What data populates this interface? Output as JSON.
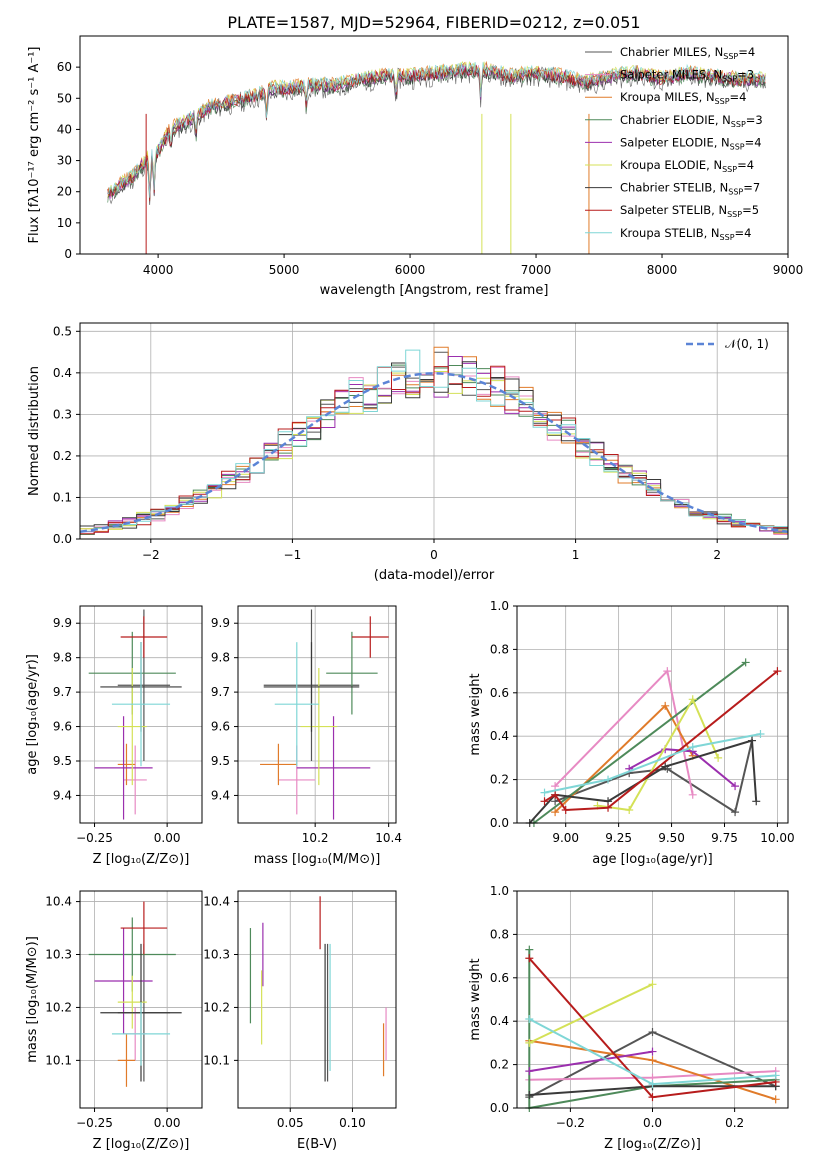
{
  "figure": {
    "title": "PLATE=1587, MJD=52964, FIBERID=0212, z=0.051"
  },
  "models": [
    {
      "name": "Chabrier MILES",
      "nssp": "4",
      "color": "#555555"
    },
    {
      "name": "Salpeter MILES",
      "nssp": "3",
      "color": "#e78ac3"
    },
    {
      "name": "Kroupa MILES",
      "nssp": "4",
      "color": "#e07b2a"
    },
    {
      "name": "Chabrier ELODIE",
      "nssp": "3",
      "color": "#4e8a5a"
    },
    {
      "name": "Salpeter ELODIE",
      "nssp": "4",
      "color": "#9b2fae"
    },
    {
      "name": "Kroupa ELODIE",
      "nssp": "4",
      "color": "#d4e157"
    },
    {
      "name": "Chabrier STELIB",
      "nssp": "7",
      "color": "#3a3a3a"
    },
    {
      "name": "Salpeter STELIB",
      "nssp": "5",
      "color": "#b71c1c"
    },
    {
      "name": "Kroupa STELIB",
      "nssp": "4",
      "color": "#7fd6d6"
    }
  ],
  "chart_data": [
    {
      "type": "line",
      "id": "spectrum",
      "xlabel": "wavelength [Angstrom, rest frame]",
      "ylabel": "Flux [fλ10⁻¹⁷ erg cm⁻² s⁻¹ A⁻¹]",
      "xlim": [
        3380,
        9000
      ],
      "ylim": [
        0,
        70
      ],
      "xticks": [
        4000,
        5000,
        6000,
        7000,
        8000,
        9000
      ],
      "yticks": [
        0,
        10,
        20,
        30,
        40,
        50,
        60
      ],
      "continuum": [
        [
          3600,
          19
        ],
        [
          3700,
          22
        ],
        [
          3800,
          25
        ],
        [
          3900,
          30
        ],
        [
          4000,
          33
        ],
        [
          4100,
          40
        ],
        [
          4200,
          42
        ],
        [
          4300,
          44
        ],
        [
          4400,
          47
        ],
        [
          4500,
          48
        ],
        [
          4600,
          49
        ],
        [
          4700,
          50
        ],
        [
          4800,
          51
        ],
        [
          4900,
          53
        ],
        [
          5000,
          53
        ],
        [
          5200,
          54
        ],
        [
          5400,
          54
        ],
        [
          5600,
          56
        ],
        [
          5800,
          57
        ],
        [
          6000,
          57
        ],
        [
          6200,
          58
        ],
        [
          6400,
          59
        ],
        [
          6600,
          59
        ],
        [
          6800,
          57
        ],
        [
          7000,
          58
        ],
        [
          7200,
          57
        ],
        [
          7400,
          55
        ],
        [
          7600,
          57
        ],
        [
          7800,
          58
        ],
        [
          8000,
          56
        ],
        [
          8200,
          58
        ],
        [
          8400,
          57
        ],
        [
          8600,
          56
        ],
        [
          8800,
          56
        ]
      ],
      "legend_position": "right"
    },
    {
      "type": "line",
      "id": "residuals",
      "xlabel": "(data-model)/error",
      "ylabel": "Normed distribution",
      "xlim": [
        -2.5,
        2.5
      ],
      "ylim": [
        0,
        0.52
      ],
      "xticks": [
        -2,
        -1,
        0,
        1,
        2
      ],
      "yticks": [
        0.0,
        0.1,
        0.2,
        0.3,
        0.4,
        0.5
      ],
      "legend": "𝒩(0, 1)",
      "grid": true
    },
    {
      "type": "scatter",
      "id": "z-age",
      "xlabel": "Z [log₁₀(Z/Z⊙)]",
      "ylabel": "age  [log₁₀(age/yr)]",
      "xlim": [
        -0.3,
        0.12
      ],
      "ylim": [
        9.32,
        9.95
      ],
      "xticks": [
        -0.25,
        0.0
      ],
      "yticks": [
        9.4,
        9.5,
        9.6,
        9.7,
        9.8,
        9.9
      ],
      "points": [
        {
          "x": -0.08,
          "y": 9.72,
          "xerr": 0.09,
          "yerr": 0.22,
          "model": 0
        },
        {
          "x": -0.11,
          "y": 9.445,
          "xerr": 0.04,
          "yerr": 0.1,
          "model": 1
        },
        {
          "x": -0.14,
          "y": 9.49,
          "xerr": 0.03,
          "yerr": 0.06,
          "model": 2
        },
        {
          "x": -0.12,
          "y": 9.755,
          "xerr": 0.15,
          "yerr": 0.12,
          "model": 3
        },
        {
          "x": -0.15,
          "y": 9.48,
          "xerr": 0.1,
          "yerr": 0.15,
          "model": 4
        },
        {
          "x": -0.12,
          "y": 9.6,
          "xerr": 0.05,
          "yerr": 0.17,
          "model": 5
        },
        {
          "x": -0.09,
          "y": 9.715,
          "xerr": 0.14,
          "yerr": 0.13,
          "model": 6
        },
        {
          "x": -0.08,
          "y": 9.86,
          "xerr": 0.08,
          "yerr": 0.06,
          "model": 7
        },
        {
          "x": -0.09,
          "y": 9.665,
          "xerr": 0.1,
          "yerr": 0.18,
          "model": 8
        }
      ]
    },
    {
      "type": "scatter",
      "id": "mass-age",
      "xlabel": "mass [log₁₀(M/M⊙)]",
      "ylabel": "",
      "xlim": [
        9.99,
        10.42
      ],
      "ylim": [
        9.32,
        9.95
      ],
      "xticks": [
        10.2,
        10.4
      ],
      "yticks": [
        9.4,
        9.5,
        9.6,
        9.7,
        9.8,
        9.9
      ],
      "points": [
        {
          "x": 10.19,
          "y": 9.72,
          "xerr": 0.13,
          "yerr": 0.22,
          "model": 0
        },
        {
          "x": 10.15,
          "y": 9.445,
          "xerr": 0.05,
          "yerr": 0.1,
          "model": 1
        },
        {
          "x": 10.1,
          "y": 9.49,
          "xerr": 0.05,
          "yerr": 0.06,
          "model": 2
        },
        {
          "x": 10.3,
          "y": 9.755,
          "xerr": 0.07,
          "yerr": 0.12,
          "model": 3
        },
        {
          "x": 10.25,
          "y": 9.48,
          "xerr": 0.1,
          "yerr": 0.15,
          "model": 4
        },
        {
          "x": 10.21,
          "y": 9.6,
          "xerr": 0.05,
          "yerr": 0.17,
          "model": 5
        },
        {
          "x": 10.19,
          "y": 9.715,
          "xerr": 0.13,
          "yerr": 0.13,
          "model": 6
        },
        {
          "x": 10.35,
          "y": 9.86,
          "xerr": 0.05,
          "yerr": 0.06,
          "model": 7
        },
        {
          "x": 10.15,
          "y": 9.665,
          "xerr": 0.06,
          "yerr": 0.18,
          "model": 8
        }
      ]
    },
    {
      "type": "line",
      "id": "age-weight",
      "xlabel": "age  [log₁₀(age/yr)]",
      "ylabel": "mass weight",
      "xlim": [
        8.77,
        10.05
      ],
      "ylim": [
        0,
        1
      ],
      "xticks": [
        9.0,
        9.25,
        9.5,
        9.75,
        10.0
      ],
      "yticks": [
        0.0,
        0.2,
        0.4,
        0.6,
        0.8,
        1.0
      ],
      "series": [
        {
          "model": 0,
          "x": [
            8.95,
            9.3,
            9.48,
            9.8,
            9.88
          ],
          "y": [
            0.1,
            0.23,
            0.25,
            0.05,
            0.38
          ]
        },
        {
          "model": 1,
          "x": [
            8.95,
            9.48,
            9.6
          ],
          "y": [
            0.17,
            0.7,
            0.13
          ]
        },
        {
          "model": 2,
          "x": [
            8.95,
            9.47,
            9.6
          ],
          "y": [
            0.05,
            0.54,
            0.31
          ]
        },
        {
          "model": 3,
          "x": [
            8.85,
            9.85
          ],
          "y": [
            0.0,
            0.74
          ]
        },
        {
          "model": 4,
          "x": [
            9.3,
            9.47,
            9.6,
            9.8
          ],
          "y": [
            0.25,
            0.34,
            0.33,
            0.17
          ]
        },
        {
          "model": 5,
          "x": [
            9.15,
            9.3,
            9.6,
            9.72
          ],
          "y": [
            0.08,
            0.06,
            0.57,
            0.3
          ]
        },
        {
          "model": 6,
          "x": [
            8.83,
            8.95,
            9.2,
            9.47,
            9.88,
            9.9
          ],
          "y": [
            0.0,
            0.13,
            0.1,
            0.26,
            0.38,
            0.1
          ]
        },
        {
          "model": 7,
          "x": [
            8.9,
            8.95,
            9.0,
            9.2,
            10.0
          ],
          "y": [
            0.1,
            0.13,
            0.06,
            0.07,
            0.7
          ]
        },
        {
          "model": 8,
          "x": [
            8.9,
            9.2,
            9.6,
            9.92
          ],
          "y": [
            0.14,
            0.2,
            0.35,
            0.41
          ]
        }
      ]
    },
    {
      "type": "scatter",
      "id": "z-mass",
      "xlabel": "Z [log₁₀(Z/Z⊙)]",
      "ylabel": "mass [log₁₀(M/M⊙)]",
      "xlim": [
        -0.3,
        0.12
      ],
      "ylim": [
        10.01,
        10.42
      ],
      "xticks": [
        -0.25,
        0.0
      ],
      "yticks": [
        10.1,
        10.2,
        10.3,
        10.4
      ],
      "points": [
        {
          "x": -0.08,
          "y": 10.19,
          "xerr": 0.09,
          "yerr": 0.13,
          "model": 0
        },
        {
          "x": -0.11,
          "y": 10.15,
          "xerr": 0.04,
          "yerr": 0.05,
          "model": 1
        },
        {
          "x": -0.14,
          "y": 10.1,
          "xerr": 0.03,
          "yerr": 0.05,
          "model": 2
        },
        {
          "x": -0.12,
          "y": 10.3,
          "xerr": 0.15,
          "yerr": 0.07,
          "model": 3
        },
        {
          "x": -0.15,
          "y": 10.25,
          "xerr": 0.1,
          "yerr": 0.1,
          "model": 4
        },
        {
          "x": -0.12,
          "y": 10.21,
          "xerr": 0.05,
          "yerr": 0.05,
          "model": 5
        },
        {
          "x": -0.09,
          "y": 10.19,
          "xerr": 0.14,
          "yerr": 0.13,
          "model": 6
        },
        {
          "x": -0.08,
          "y": 10.35,
          "xerr": 0.08,
          "yerr": 0.05,
          "model": 7
        },
        {
          "x": -0.09,
          "y": 10.15,
          "xerr": 0.1,
          "yerr": 0.06,
          "model": 8
        }
      ]
    },
    {
      "type": "scatter",
      "id": "ebv-mass",
      "xlabel": "E(B-V)",
      "ylabel": "",
      "xlim": [
        0.008,
        0.135
      ],
      "ylim": [
        10.01,
        10.42
      ],
      "xticks": [
        0.05,
        0.1
      ],
      "yticks": [
        10.1,
        10.2,
        10.3,
        10.4
      ],
      "points": [
        {
          "x": 0.08,
          "y": 10.19,
          "yerr": 0.13,
          "model": 0
        },
        {
          "x": 0.127,
          "y": 10.15,
          "yerr": 0.05,
          "model": 1
        },
        {
          "x": 0.125,
          "y": 10.12,
          "yerr": 0.05,
          "model": 2
        },
        {
          "x": 0.018,
          "y": 10.26,
          "yerr": 0.09,
          "model": 3
        },
        {
          "x": 0.028,
          "y": 10.3,
          "yerr": 0.06,
          "model": 4
        },
        {
          "x": 0.027,
          "y": 10.2,
          "yerr": 0.07,
          "model": 5
        },
        {
          "x": 0.078,
          "y": 10.19,
          "yerr": 0.13,
          "model": 6
        },
        {
          "x": 0.074,
          "y": 10.36,
          "yerr": 0.05,
          "model": 7
        },
        {
          "x": 0.082,
          "y": 10.2,
          "yerr": 0.12,
          "model": 8
        }
      ]
    },
    {
      "type": "line",
      "id": "z-weight",
      "xlabel": "Z [log₁₀(Z/Z⊙)]",
      "ylabel": "mass weight",
      "xlim": [
        -0.33,
        0.33
      ],
      "ylim": [
        0,
        1
      ],
      "xticks": [
        -0.2,
        0.0,
        0.2
      ],
      "yticks": [
        0.0,
        0.2,
        0.4,
        0.6,
        0.8,
        1.0
      ],
      "series": [
        {
          "model": 0,
          "x": [
            -0.3,
            0.0,
            0.3
          ],
          "y": [
            0.05,
            0.35,
            0.1
          ]
        },
        {
          "model": 1,
          "x": [
            -0.3,
            0.0,
            0.3
          ],
          "y": [
            0.13,
            0.14,
            0.17
          ]
        },
        {
          "model": 2,
          "x": [
            -0.3,
            0.0,
            0.3
          ],
          "y": [
            0.31,
            0.22,
            0.04
          ]
        },
        {
          "model": 3,
          "x": [
            -0.3,
            -0.3,
            0.0,
            0.3
          ],
          "y": [
            0.73,
            0.0,
            0.1,
            0.13
          ]
        },
        {
          "model": 4,
          "x": [
            -0.3,
            0.0
          ],
          "y": [
            0.17,
            0.26
          ]
        },
        {
          "model": 5,
          "x": [
            -0.3,
            0.0
          ],
          "y": [
            0.3,
            0.57
          ]
        },
        {
          "model": 6,
          "x": [
            -0.3,
            0.0,
            0.3
          ],
          "y": [
            0.06,
            0.1,
            0.1
          ]
        },
        {
          "model": 7,
          "x": [
            -0.3,
            0.0,
            0.3
          ],
          "y": [
            0.69,
            0.05,
            0.12
          ]
        },
        {
          "model": 8,
          "x": [
            -0.3,
            0.0,
            0.3
          ],
          "y": [
            0.41,
            0.11,
            0.15
          ]
        }
      ]
    }
  ]
}
